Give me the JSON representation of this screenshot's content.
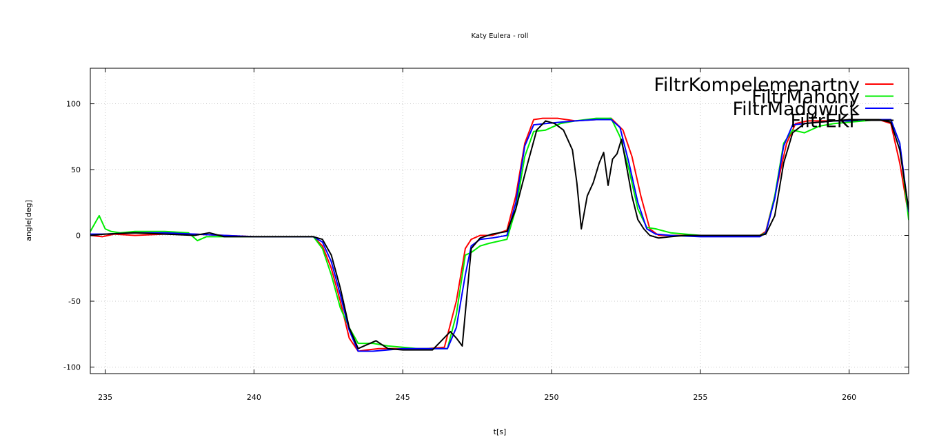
{
  "chart_data": {
    "type": "line",
    "title": "Katy Eulera - roll",
    "xlabel": "t[s]",
    "ylabel": "angle[deg]",
    "xlim": [
      234.5,
      262
    ],
    "ylim": [
      -105,
      127
    ],
    "xticks": [
      235,
      240,
      245,
      250,
      255,
      260
    ],
    "yticks": [
      -100,
      -50,
      0,
      50,
      100
    ],
    "grid": true,
    "legend_position": "top-right",
    "series": [
      {
        "name": "FiltrKompelemenartny",
        "color": "#ff0000",
        "x": [
          234.5,
          234.9,
          235.3,
          236,
          237,
          238,
          239,
          240,
          241,
          242,
          242.3,
          242.6,
          242.9,
          243.2,
          243.5,
          243.8,
          244.2,
          245,
          245.8,
          246.4,
          246.8,
          247.1,
          247.3,
          247.6,
          248,
          248.5,
          248.8,
          249.1,
          249.4,
          249.7,
          250.2,
          250.8,
          251.5,
          252,
          252.4,
          252.7,
          253.0,
          253.3,
          253.6,
          254,
          255,
          256,
          257,
          257.2,
          257.5,
          257.9,
          258.2,
          258.6,
          259,
          259.5,
          260,
          260.5,
          261,
          261.4,
          261.7,
          262
        ],
        "y": [
          0,
          -1,
          1,
          0,
          1,
          1,
          0,
          -1,
          -1,
          -1,
          -8,
          -25,
          -50,
          -78,
          -88,
          -87,
          -86,
          -86,
          -86,
          -85,
          -50,
          -10,
          -3,
          0,
          0,
          4,
          30,
          70,
          88,
          89,
          89,
          87,
          88,
          89,
          80,
          60,
          30,
          5,
          0,
          0,
          0,
          0,
          0,
          3,
          30,
          70,
          85,
          87,
          87,
          87,
          87,
          88,
          88,
          85,
          55,
          15
        ]
      },
      {
        "name": "FiltrMahony",
        "color": "#00ee00",
        "x": [
          234.5,
          234.8,
          235.0,
          235.2,
          235.5,
          236,
          237,
          237.8,
          238.1,
          238.4,
          239,
          240,
          241,
          242,
          242.3,
          242.6,
          242.9,
          243.2,
          243.5,
          244,
          244.5,
          245,
          245.5,
          246,
          246.5,
          246.8,
          247.1,
          247.3,
          247.6,
          247.9,
          248.5,
          248.8,
          249.1,
          249.4,
          249.8,
          250.3,
          250.8,
          251.5,
          252,
          252.3,
          252.6,
          252.9,
          253.2,
          253.5,
          254,
          254.5,
          255,
          256,
          257,
          257.2,
          257.5,
          257.8,
          258.1,
          258.5,
          259,
          259.5,
          260,
          260.5,
          261,
          261.4,
          261.7,
          262
        ],
        "y": [
          3,
          15,
          5,
          3,
          2,
          3,
          3,
          2,
          -4,
          -1,
          -1,
          -1,
          -1,
          -1,
          -10,
          -30,
          -55,
          -70,
          -82,
          -82,
          -84,
          -85,
          -86,
          -86,
          -86,
          -60,
          -15,
          -13,
          -8,
          -6,
          -3,
          20,
          60,
          79,
          80,
          85,
          87,
          89,
          89,
          75,
          50,
          20,
          6,
          5,
          2,
          1,
          0,
          0,
          0,
          2,
          30,
          70,
          80,
          78,
          83,
          85,
          86,
          87,
          88,
          88,
          70,
          12
        ]
      },
      {
        "name": "FiltrMadgwick",
        "color": "#0000ff",
        "x": [
          234.5,
          235,
          236,
          237,
          238,
          239,
          240,
          241,
          242,
          242.3,
          242.6,
          242.9,
          243.2,
          243.5,
          244,
          244.5,
          245,
          245.5,
          246,
          246.5,
          246.8,
          247.1,
          247.3,
          247.6,
          248,
          248.5,
          248.8,
          249.1,
          249.4,
          249.8,
          250.3,
          250.8,
          251.5,
          252,
          252.3,
          252.6,
          252.9,
          253.2,
          253.5,
          254,
          255,
          256,
          257,
          257.2,
          257.5,
          257.8,
          258.1,
          258.5,
          259,
          259.5,
          260,
          260.5,
          261,
          261.4,
          261.7,
          262
        ],
        "y": [
          1,
          1,
          2,
          2,
          1,
          0,
          -1,
          -1,
          -1,
          -5,
          -20,
          -45,
          -72,
          -88,
          -88,
          -87,
          -86,
          -86,
          -86,
          -86,
          -70,
          -30,
          -8,
          -3,
          -2,
          0,
          25,
          68,
          84,
          85,
          86,
          87,
          88,
          88,
          82,
          55,
          25,
          5,
          1,
          0,
          -1,
          -1,
          -1,
          2,
          28,
          68,
          84,
          85,
          86,
          87,
          87,
          88,
          88,
          88,
          70,
          18
        ]
      },
      {
        "name": "FiltrEKF",
        "color": "#000000",
        "x": [
          234.5,
          235,
          236,
          237,
          238,
          238.5,
          239,
          240,
          241,
          242,
          242.3,
          242.6,
          242.9,
          243.2,
          243.5,
          243.9,
          244.1,
          244.5,
          245,
          245.5,
          246,
          246.3,
          246.6,
          246.8,
          247.0,
          247.3,
          247.6,
          248,
          248.5,
          248.8,
          249.2,
          249.5,
          249.8,
          250.1,
          250.4,
          250.7,
          250.85,
          251.0,
          251.2,
          251.4,
          251.6,
          251.75,
          251.9,
          252.05,
          252.2,
          252.35,
          252.5,
          252.7,
          252.9,
          253.1,
          253.3,
          253.6,
          254,
          254.5,
          255,
          256,
          257,
          257.2,
          257.5,
          257.8,
          258.1,
          258.5,
          259,
          259.5,
          260,
          260.5,
          261,
          261.4,
          261.7,
          262
        ],
        "y": [
          0,
          1,
          2,
          1,
          0,
          2,
          -1,
          -1,
          -1,
          -1,
          -3,
          -15,
          -40,
          -70,
          -86,
          -82,
          -80,
          -86,
          -87,
          -87,
          -87,
          -80,
          -73,
          -78,
          -84,
          -10,
          -2,
          1,
          3,
          20,
          55,
          80,
          87,
          85,
          80,
          65,
          40,
          5,
          30,
          40,
          55,
          63,
          38,
          58,
          62,
          73,
          55,
          30,
          12,
          5,
          0,
          -2,
          -1,
          0,
          0,
          0,
          0,
          1,
          15,
          55,
          78,
          85,
          86,
          87,
          88,
          88,
          88,
          86,
          65,
          20
        ]
      }
    ]
  }
}
